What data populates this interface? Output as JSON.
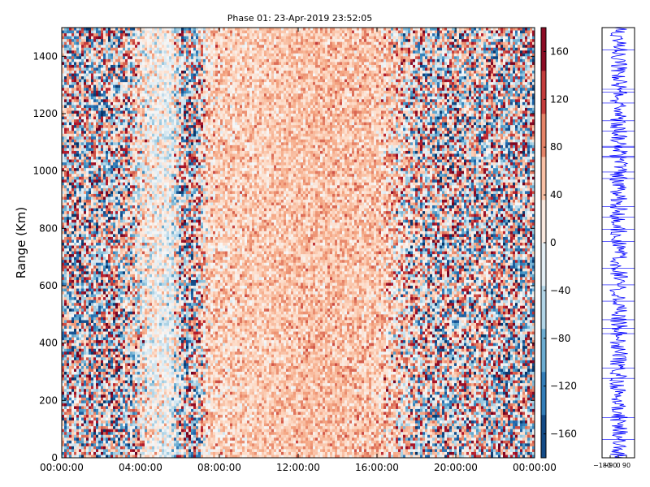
{
  "chart_data": [
    {
      "type": "heatmap",
      "title": "Phase 01: 23-Apr-2019 23:52:05",
      "ylabel": "Range (Km)",
      "xlabel": "",
      "x_tick_labels": [
        "00:00:00",
        "04:00:00",
        "08:00:00",
        "12:00:00",
        "16:00:00",
        "20:00:00",
        "00:00:00"
      ],
      "x_range_hours": [
        0,
        24
      ],
      "y_ticks": [
        0,
        200,
        400,
        600,
        800,
        1000,
        1200,
        1400
      ],
      "ylim": [
        0,
        1500
      ],
      "colormap": "RdBu_r",
      "colorbar": {
        "ticks": [
          -160,
          -120,
          -80,
          -40,
          0,
          40,
          80,
          120,
          160
        ],
        "range": [
          -180,
          180
        ],
        "levels": 10
      },
      "time_profile": [
        {
          "t": 0.0,
          "mean": 10,
          "spread": 120
        },
        {
          "t": 1.5,
          "mean": 20,
          "spread": 125
        },
        {
          "t": 3.0,
          "mean": 25,
          "spread": 110
        },
        {
          "t": 4.5,
          "mean": 10,
          "spread": 40
        },
        {
          "t": 5.5,
          "mean": -10,
          "spread": 35
        },
        {
          "t": 6.5,
          "mean": 15,
          "spread": 150
        },
        {
          "t": 7.5,
          "mean": 40,
          "spread": 35
        },
        {
          "t": 10.0,
          "mean": 45,
          "spread": 25
        },
        {
          "t": 13.0,
          "mean": 55,
          "spread": 25
        },
        {
          "t": 16.0,
          "mean": 50,
          "spread": 30
        },
        {
          "t": 17.5,
          "mean": 30,
          "spread": 80
        },
        {
          "t": 19.0,
          "mean": 20,
          "spread": 110
        },
        {
          "t": 21.0,
          "mean": 30,
          "spread": 100
        },
        {
          "t": 23.0,
          "mean": 10,
          "spread": 130
        },
        {
          "t": 24.0,
          "mean": 10,
          "spread": 130
        }
      ]
    },
    {
      "type": "line",
      "title": "",
      "color": "#0000ff",
      "x_tick_labels": [
        "-180",
        "-90",
        "0",
        "90"
      ],
      "xlim": [
        -180,
        180
      ],
      "ylim": [
        0,
        1500
      ],
      "description": "range profile of phase at last time step"
    }
  ]
}
